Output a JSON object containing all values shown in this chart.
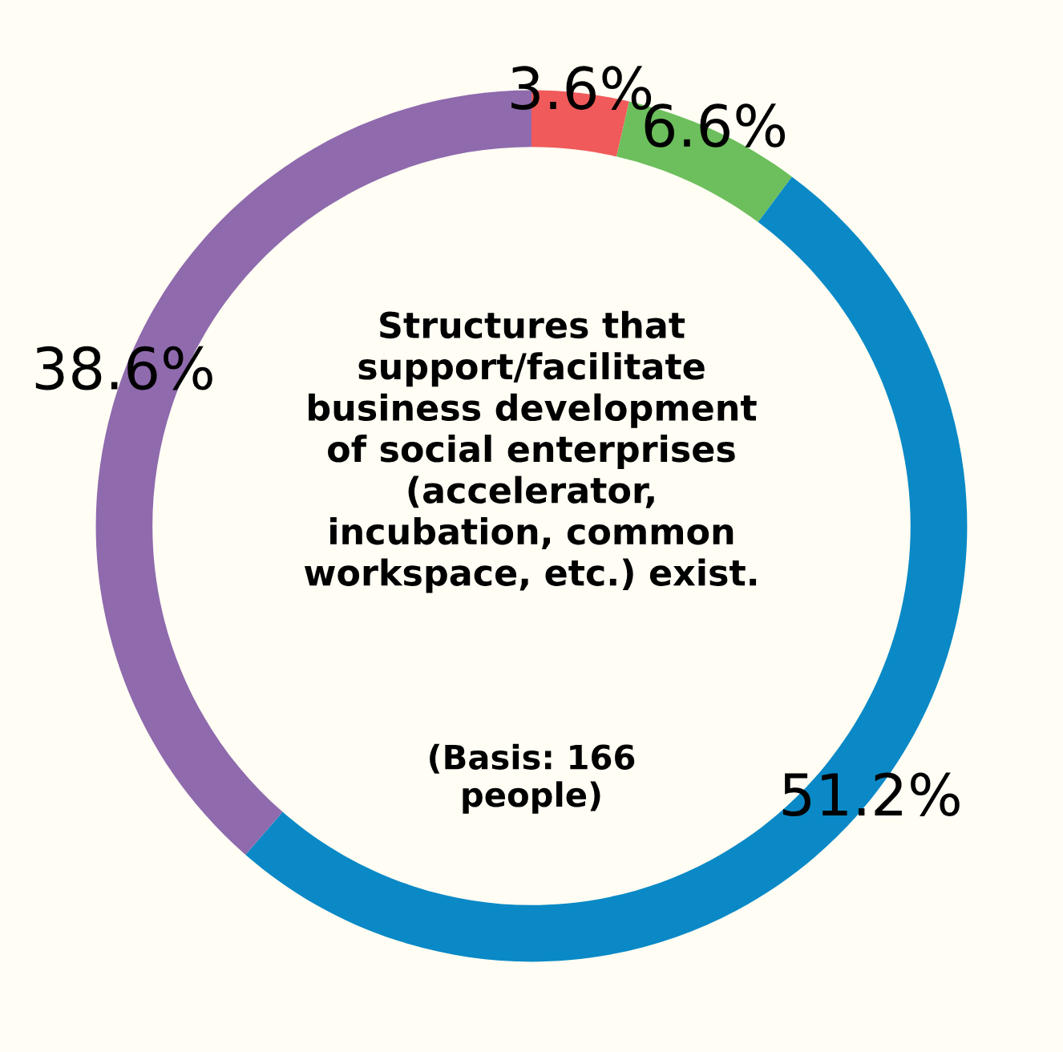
{
  "chart_data": {
    "type": "donut",
    "title": "Structures that\nsupport/facilitate\nbusiness development\nof social enterprises\n(accelerator,\nincubation, common\nworkspace, etc.) exist.",
    "annotations": [
      "(Basis: 166\npeople)"
    ],
    "categories": [
      null,
      null,
      null,
      null
    ],
    "values": [
      3.6,
      6.6,
      51.2,
      38.6
    ],
    "colors": [
      "#f05a5a",
      "#6cbf5c",
      "#0a89c6",
      "#8f6aad"
    ],
    "value_labels": [
      "3.6%",
      "6.6%",
      "51.2%",
      "38.6%"
    ],
    "legend": false
  }
}
